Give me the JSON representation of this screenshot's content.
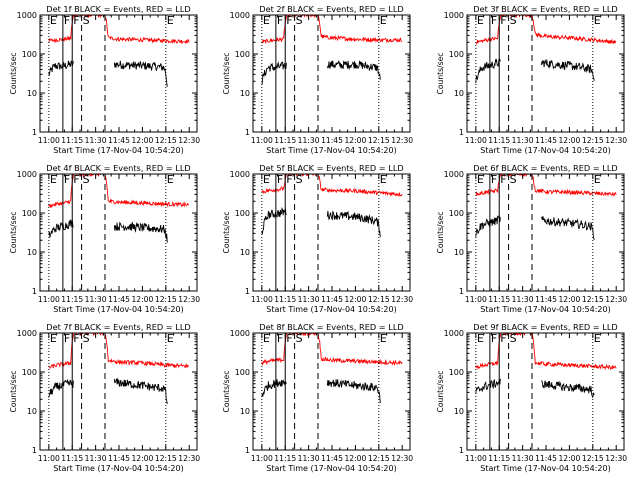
{
  "figure": {
    "xlabel": "Start Time (17-Nov-04 10:54:20)",
    "ylabel": "Counts/sec",
    "xticks": [
      "11:00",
      "11:15",
      "11:30",
      "11:45",
      "12:00",
      "12:15",
      "12:30"
    ],
    "yticks": [
      "1",
      "10",
      "100",
      "1000"
    ],
    "colors": {
      "events": "#000000",
      "lld": "#ff0000",
      "axes": "#000000"
    },
    "markers": {
      "E": "E",
      "F": "F",
      "S": "S"
    }
  },
  "chart_data": [
    {
      "type": "line",
      "title": "Det 1f BLACK = Events, RED = LLD",
      "xlabel": "Start Time (17-Nov-04 10:54:20)",
      "ylabel": "Counts/sec",
      "y_scale": "log",
      "ylim": [
        1,
        1000
      ],
      "xlim": [
        "10:54",
        "12:35"
      ],
      "series": [
        {
          "name": "Events",
          "color": "#000000",
          "x": [
            "11:00",
            "11:04",
            "11:08",
            "11:12",
            "11:15",
            "11:16",
            "11:36",
            "11:42",
            "11:50",
            "12:00",
            "12:08",
            "12:14",
            "12:16"
          ],
          "y": [
            30,
            50,
            48,
            52,
            55,
            55,
            null,
            55,
            52,
            50,
            48,
            45,
            15
          ]
        },
        {
          "name": "LLD",
          "color": "#ff0000",
          "x": [
            "11:00",
            "11:05",
            "11:10",
            "11:14",
            "11:16",
            "11:18",
            "11:36",
            "11:38",
            "11:45",
            "12:00",
            "12:15",
            "12:30"
          ],
          "y": [
            220,
            230,
            240,
            250,
            1000,
            1000,
            1000,
            260,
            240,
            230,
            220,
            210
          ]
        }
      ],
      "markers": [
        {
          "label": "E",
          "time": "11:00",
          "style": "dotted"
        },
        {
          "label": "F",
          "time": "11:09",
          "style": "solid"
        },
        {
          "label": "F",
          "time": "11:15",
          "style": "solid"
        },
        {
          "label": "S",
          "time": "11:21",
          "style": "dashed"
        },
        {
          "label": "",
          "time": "11:36",
          "style": "dashed"
        },
        {
          "label": "E",
          "time": "12:15",
          "style": "dotted"
        }
      ]
    },
    {
      "type": "line",
      "title": "Det 2f BLACK = Events, RED = LLD",
      "xlabel": "Start Time (17-Nov-04 10:54:20)",
      "ylabel": "Counts/sec",
      "y_scale": "log",
      "ylim": [
        1,
        1000
      ],
      "xlim": [
        "10:54",
        "12:35"
      ],
      "series": [
        {
          "name": "Events",
          "color": "#000000",
          "x": [
            "11:00",
            "11:04",
            "11:08",
            "11:12",
            "11:15",
            "11:16",
            "11:36",
            "11:42",
            "11:50",
            "12:00",
            "12:08",
            "12:14",
            "12:16"
          ],
          "y": [
            20,
            45,
            45,
            48,
            50,
            50,
            null,
            55,
            52,
            55,
            48,
            45,
            20
          ]
        },
        {
          "name": "LLD",
          "color": "#ff0000",
          "x": [
            "11:00",
            "11:05",
            "11:10",
            "11:14",
            "11:16",
            "11:18",
            "11:36",
            "11:38",
            "11:45",
            "12:00",
            "12:15",
            "12:30"
          ],
          "y": [
            200,
            220,
            230,
            240,
            1000,
            1000,
            1000,
            280,
            260,
            240,
            230,
            230
          ]
        }
      ],
      "markers": [
        {
          "label": "E",
          "time": "11:00",
          "style": "dotted"
        },
        {
          "label": "F",
          "time": "11:09",
          "style": "solid"
        },
        {
          "label": "F",
          "time": "11:15",
          "style": "solid"
        },
        {
          "label": "S",
          "time": "11:21",
          "style": "dashed"
        },
        {
          "label": "",
          "time": "11:36",
          "style": "dashed"
        },
        {
          "label": "E",
          "time": "12:15",
          "style": "dotted"
        }
      ]
    },
    {
      "type": "line",
      "title": "Det 3f BLACK = Events, RED = LLD",
      "xlabel": "Start Time (17-Nov-04 10:54:20)",
      "ylabel": "Counts/sec",
      "y_scale": "log",
      "ylim": [
        1,
        1000
      ],
      "xlim": [
        "10:54",
        "12:35"
      ],
      "series": [
        {
          "name": "Events",
          "color": "#000000",
          "x": [
            "11:00",
            "11:04",
            "11:08",
            "11:12",
            "11:15",
            "11:16",
            "11:36",
            "11:42",
            "11:50",
            "12:00",
            "12:08",
            "12:14",
            "12:16"
          ],
          "y": [
            20,
            45,
            50,
            55,
            60,
            60,
            null,
            60,
            55,
            50,
            45,
            40,
            20
          ]
        },
        {
          "name": "LLD",
          "color": "#ff0000",
          "x": [
            "11:00",
            "11:05",
            "11:10",
            "11:14",
            "11:16",
            "11:18",
            "11:36",
            "11:38",
            "11:45",
            "12:00",
            "12:15",
            "12:30"
          ],
          "y": [
            200,
            220,
            240,
            250,
            1000,
            1000,
            1000,
            320,
            280,
            260,
            230,
            200
          ]
        }
      ],
      "markers": [
        {
          "label": "E",
          "time": "11:00",
          "style": "dotted"
        },
        {
          "label": "F",
          "time": "11:09",
          "style": "solid"
        },
        {
          "label": "F",
          "time": "11:15",
          "style": "solid"
        },
        {
          "label": "S",
          "time": "11:21",
          "style": "dashed"
        },
        {
          "label": "",
          "time": "11:36",
          "style": "dashed"
        },
        {
          "label": "E",
          "time": "12:15",
          "style": "dotted"
        }
      ]
    },
    {
      "type": "line",
      "title": "Det 4f BLACK = Events, RED = LLD",
      "xlabel": "Start Time (17-Nov-04 10:54:20)",
      "ylabel": "Counts/sec",
      "y_scale": "log",
      "ylim": [
        1,
        1000
      ],
      "xlim": [
        "10:54",
        "12:35"
      ],
      "series": [
        {
          "name": "Events",
          "color": "#000000",
          "x": [
            "11:00",
            "11:04",
            "11:08",
            "11:12",
            "11:15",
            "11:16",
            "11:36",
            "11:42",
            "11:50",
            "12:00",
            "12:08",
            "12:14",
            "12:16"
          ],
          "y": [
            25,
            40,
            45,
            50,
            55,
            55,
            null,
            45,
            45,
            42,
            40,
            38,
            20
          ]
        },
        {
          "name": "LLD",
          "color": "#ff0000",
          "x": [
            "11:00",
            "11:05",
            "11:10",
            "11:14",
            "11:16",
            "11:18",
            "11:36",
            "11:38",
            "11:45",
            "12:00",
            "12:15",
            "12:30"
          ],
          "y": [
            150,
            170,
            180,
            200,
            1000,
            1000,
            1000,
            200,
            190,
            180,
            170,
            160
          ]
        }
      ],
      "markers": [
        {
          "label": "E",
          "time": "11:00",
          "style": "dotted"
        },
        {
          "label": "F",
          "time": "11:09",
          "style": "solid"
        },
        {
          "label": "F",
          "time": "11:15",
          "style": "solid"
        },
        {
          "label": "S",
          "time": "11:21",
          "style": "dashed"
        },
        {
          "label": "",
          "time": "11:36",
          "style": "dashed"
        },
        {
          "label": "E",
          "time": "12:15",
          "style": "dotted"
        }
      ]
    },
    {
      "type": "line",
      "title": "Det 5f BLACK = Events, RED = LLD",
      "xlabel": "Start Time (17-Nov-04 10:54:20)",
      "ylabel": "Counts/sec",
      "y_scale": "log",
      "ylim": [
        1,
        1000
      ],
      "xlim": [
        "10:54",
        "12:35"
      ],
      "series": [
        {
          "name": "Events",
          "color": "#000000",
          "x": [
            "11:00",
            "11:04",
            "11:08",
            "11:12",
            "11:15",
            "11:16",
            "11:36",
            "11:42",
            "11:50",
            "12:00",
            "12:08",
            "12:14",
            "12:16"
          ],
          "y": [
            30,
            90,
            95,
            100,
            110,
            110,
            null,
            90,
            85,
            80,
            70,
            60,
            30
          ]
        },
        {
          "name": "LLD",
          "color": "#ff0000",
          "x": [
            "11:00",
            "11:05",
            "11:10",
            "11:14",
            "11:16",
            "11:18",
            "11:36",
            "11:38",
            "11:45",
            "12:00",
            "12:15",
            "12:30"
          ],
          "y": [
            350,
            380,
            400,
            420,
            1000,
            1000,
            1000,
            400,
            380,
            370,
            330,
            300
          ]
        }
      ],
      "markers": [
        {
          "label": "E",
          "time": "11:00",
          "style": "dotted"
        },
        {
          "label": "F",
          "time": "11:09",
          "style": "solid"
        },
        {
          "label": "F",
          "time": "11:15",
          "style": "solid"
        },
        {
          "label": "S",
          "time": "11:21",
          "style": "dashed"
        },
        {
          "label": "",
          "time": "11:36",
          "style": "dashed"
        },
        {
          "label": "E",
          "time": "12:15",
          "style": "dotted"
        }
      ]
    },
    {
      "type": "line",
      "title": "Det 6f BLACK = Events, RED = LLD",
      "xlabel": "Start Time (17-Nov-04 10:54:20)",
      "ylabel": "Counts/sec",
      "y_scale": "log",
      "ylim": [
        1,
        1000
      ],
      "xlim": [
        "10:54",
        "12:35"
      ],
      "series": [
        {
          "name": "Events",
          "color": "#000000",
          "x": [
            "11:00",
            "11:04",
            "11:08",
            "11:12",
            "11:15",
            "11:16",
            "11:36",
            "11:42",
            "11:50",
            "12:00",
            "12:08",
            "12:14",
            "12:16"
          ],
          "y": [
            30,
            50,
            55,
            60,
            70,
            70,
            null,
            65,
            60,
            55,
            50,
            45,
            25
          ]
        },
        {
          "name": "LLD",
          "color": "#ff0000",
          "x": [
            "11:00",
            "11:05",
            "11:10",
            "11:14",
            "11:16",
            "11:18",
            "11:36",
            "11:38",
            "11:45",
            "12:00",
            "12:15",
            "12:30"
          ],
          "y": [
            300,
            330,
            350,
            380,
            1000,
            1000,
            1000,
            380,
            350,
            340,
            320,
            300
          ]
        }
      ],
      "markers": [
        {
          "label": "E",
          "time": "11:00",
          "style": "dotted"
        },
        {
          "label": "F",
          "time": "11:09",
          "style": "solid"
        },
        {
          "label": "F",
          "time": "11:15",
          "style": "solid"
        },
        {
          "label": "S",
          "time": "11:21",
          "style": "dashed"
        },
        {
          "label": "",
          "time": "11:36",
          "style": "dashed"
        },
        {
          "label": "E",
          "time": "12:15",
          "style": "dotted"
        }
      ]
    },
    {
      "type": "line",
      "title": "Det 7f BLACK = Events, RED = LLD",
      "xlabel": "Start Time (17-Nov-04 10:54:20)",
      "ylabel": "Counts/sec",
      "y_scale": "log",
      "ylim": [
        1,
        1000
      ],
      "xlim": [
        "10:54",
        "12:35"
      ],
      "series": [
        {
          "name": "Events",
          "color": "#000000",
          "x": [
            "11:00",
            "11:04",
            "11:08",
            "11:12",
            "11:15",
            "11:16",
            "11:36",
            "11:42",
            "11:50",
            "12:00",
            "12:08",
            "12:14",
            "12:16"
          ],
          "y": [
            25,
            40,
            45,
            50,
            50,
            50,
            null,
            55,
            50,
            45,
            40,
            38,
            15
          ]
        },
        {
          "name": "LLD",
          "color": "#ff0000",
          "x": [
            "11:00",
            "11:05",
            "11:10",
            "11:14",
            "11:16",
            "11:18",
            "11:36",
            "11:38",
            "11:45",
            "12:00",
            "12:15",
            "12:30"
          ],
          "y": [
            130,
            150,
            160,
            170,
            1000,
            1000,
            1000,
            200,
            180,
            170,
            150,
            140
          ]
        }
      ],
      "markers": [
        {
          "label": "E",
          "time": "11:00",
          "style": "dotted"
        },
        {
          "label": "F",
          "time": "11:09",
          "style": "solid"
        },
        {
          "label": "F",
          "time": "11:15",
          "style": "solid"
        },
        {
          "label": "S",
          "time": "11:21",
          "style": "dashed"
        },
        {
          "label": "",
          "time": "11:36",
          "style": "dashed"
        },
        {
          "label": "E",
          "time": "12:15",
          "style": "dotted"
        }
      ]
    },
    {
      "type": "line",
      "title": "Det 8f BLACK = Events, RED = LLD",
      "xlabel": "Start Time (17-Nov-04 10:54:20)",
      "ylabel": "Counts/sec",
      "y_scale": "log",
      "ylim": [
        1,
        1000
      ],
      "xlim": [
        "10:54",
        "12:35"
      ],
      "series": [
        {
          "name": "Events",
          "color": "#000000",
          "x": [
            "11:00",
            "11:04",
            "11:08",
            "11:12",
            "11:15",
            "11:16",
            "11:36",
            "11:42",
            "11:50",
            "12:00",
            "12:08",
            "12:14",
            "12:16"
          ],
          "y": [
            25,
            45,
            50,
            55,
            55,
            55,
            null,
            55,
            50,
            45,
            42,
            40,
            20
          ]
        },
        {
          "name": "LLD",
          "color": "#ff0000",
          "x": [
            "11:00",
            "11:05",
            "11:10",
            "11:14",
            "11:16",
            "11:18",
            "11:36",
            "11:38",
            "11:45",
            "12:00",
            "12:15",
            "12:30"
          ],
          "y": [
            170,
            190,
            200,
            210,
            1000,
            1000,
            1000,
            220,
            200,
            190,
            180,
            170
          ]
        }
      ],
      "markers": [
        {
          "label": "E",
          "time": "11:00",
          "style": "dotted"
        },
        {
          "label": "F",
          "time": "11:09",
          "style": "solid"
        },
        {
          "label": "F",
          "time": "11:15",
          "style": "solid"
        },
        {
          "label": "S",
          "time": "11:21",
          "style": "dashed"
        },
        {
          "label": "",
          "time": "11:36",
          "style": "dashed"
        },
        {
          "label": "E",
          "time": "12:15",
          "style": "dotted"
        }
      ]
    },
    {
      "type": "line",
      "title": "Det 9f BLACK = Events, RED = LLD",
      "xlabel": "Start Time (17-Nov-04 10:54:20)",
      "ylabel": "Counts/sec",
      "y_scale": "log",
      "ylim": [
        1,
        1000
      ],
      "xlim": [
        "10:54",
        "12:35"
      ],
      "series": [
        {
          "name": "Events",
          "color": "#000000",
          "x": [
            "11:00",
            "11:04",
            "11:08",
            "11:12",
            "11:15",
            "11:16",
            "11:36",
            "11:42",
            "11:50",
            "12:00",
            "12:08",
            "12:14",
            "12:16"
          ],
          "y": [
            30,
            40,
            45,
            50,
            55,
            55,
            null,
            50,
            45,
            40,
            38,
            35,
            20
          ]
        },
        {
          "name": "LLD",
          "color": "#ff0000",
          "x": [
            "11:00",
            "11:05",
            "11:10",
            "11:14",
            "11:16",
            "11:18",
            "11:36",
            "11:38",
            "11:45",
            "12:00",
            "12:15",
            "12:30"
          ],
          "y": [
            130,
            150,
            160,
            170,
            1000,
            1000,
            1000,
            170,
            160,
            150,
            140,
            130
          ]
        }
      ],
      "markers": [
        {
          "label": "E",
          "time": "11:00",
          "style": "dotted"
        },
        {
          "label": "F",
          "time": "11:09",
          "style": "solid"
        },
        {
          "label": "F",
          "time": "11:15",
          "style": "solid"
        },
        {
          "label": "S",
          "time": "11:21",
          "style": "dashed"
        },
        {
          "label": "",
          "time": "11:36",
          "style": "dashed"
        },
        {
          "label": "E",
          "time": "12:15",
          "style": "dotted"
        }
      ]
    }
  ]
}
